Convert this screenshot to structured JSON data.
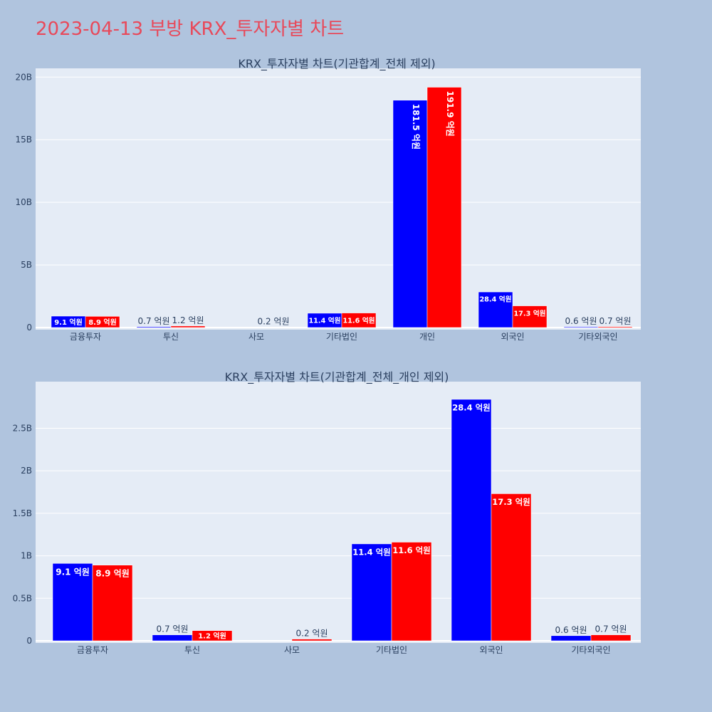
{
  "page_title": "2023-04-13 부방 KRX_투자자별 차트",
  "colors": {
    "buy": "#0000ff",
    "sell": "#ff0000",
    "plot_bg": "#e5ecf6",
    "page_bg": "#b0c4de",
    "title": "#e8495a"
  },
  "chart_data": [
    {
      "type": "bar",
      "title": "KRX_투자자별 차트(기관합계_전체 제외)",
      "categories": [
        "금융투자",
        "투신",
        "사모",
        "기타법인",
        "개인",
        "외국인",
        "기타외국인"
      ],
      "series": [
        {
          "color": "#0000ff",
          "values": [
            0.91,
            0.07,
            0,
            1.14,
            18.15,
            2.84,
            0.06
          ],
          "labels": [
            "9.1 억원",
            "0.7 억원",
            "",
            "11.4 억원",
            "181.5 억원",
            "28.4 억원",
            "0.6 억원"
          ]
        },
        {
          "color": "#ff0000",
          "values": [
            0.89,
            0.12,
            0.02,
            1.16,
            19.19,
            1.73,
            0.07
          ],
          "labels": [
            "8.9 억원",
            "1.2 억원",
            "0.2 억원",
            "11.6 억원",
            "191.9 억원",
            "17.3 억원",
            "0.7 억원"
          ]
        }
      ],
      "ylim": [
        0,
        20.3
      ],
      "yticks": [
        0,
        5,
        10,
        15,
        20
      ],
      "ytick_labels": [
        "0",
        "5B",
        "10B",
        "15B",
        "20B"
      ],
      "grid": true
    },
    {
      "type": "bar",
      "title": "KRX_투자자별 차트(기관합계_전체_개인 제외)",
      "categories": [
        "금융투자",
        "투신",
        "사모",
        "기타법인",
        "외국인",
        "기타외국인"
      ],
      "series": [
        {
          "color": "#0000ff",
          "values": [
            0.91,
            0.07,
            0,
            1.14,
            2.84,
            0.06
          ],
          "labels": [
            "9.1 억원",
            "0.7 억원",
            "",
            "11.4 억원",
            "28.4 억원",
            "0.6 억원"
          ]
        },
        {
          "color": "#ff0000",
          "values": [
            0.89,
            0.12,
            0.02,
            1.16,
            1.73,
            0.07
          ],
          "labels": [
            "8.9 억원",
            "1.2 억원",
            "0.2 억원",
            "11.6 억원",
            "17.3 억원",
            "0.7 억원"
          ]
        }
      ],
      "ylim": [
        0,
        2.99
      ],
      "yticks": [
        0,
        0.5,
        1,
        1.5,
        2,
        2.5
      ],
      "ytick_labels": [
        "0",
        "0.5B",
        "1B",
        "1.5B",
        "2B",
        "2.5B"
      ],
      "grid": true
    }
  ]
}
